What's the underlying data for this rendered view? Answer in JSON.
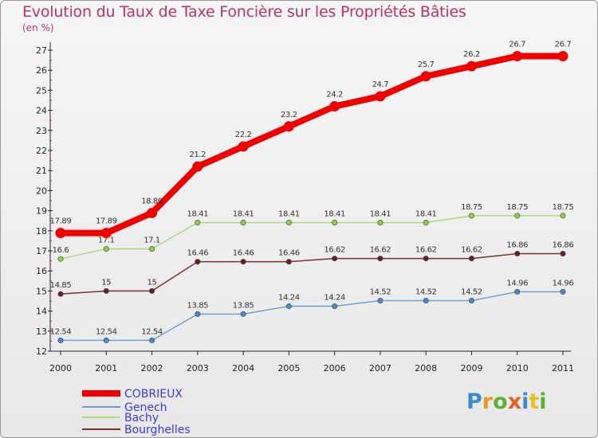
{
  "title": "Evolution du Taux de Taxe Foncière sur les Propriétés Bâties",
  "unit_label": "(en %)",
  "logo_text": "Proxiti",
  "chart_data": {
    "type": "line",
    "title": "Evolution du Taux de Taxe Foncière sur les Propriétés Bâties",
    "ylabel": "(en %)",
    "xlabel": "",
    "ylim": [
      12,
      27
    ],
    "yticks": [
      12,
      13,
      14,
      15,
      16,
      17,
      18,
      19,
      20,
      21,
      22,
      23,
      24,
      25,
      26,
      27
    ],
    "categories": [
      "2000",
      "2001",
      "2002",
      "2003",
      "2004",
      "2005",
      "2006",
      "2007",
      "2008",
      "2009",
      "2010",
      "2011"
    ],
    "series": [
      {
        "name": "COBRIEUX",
        "color": "#ee0000",
        "marker": "#ee0000",
        "values": [
          17.89,
          17.89,
          18.89,
          21.2,
          22.2,
          23.2,
          24.2,
          24.7,
          25.7,
          26.2,
          26.7,
          26.7
        ],
        "labels": [
          "17.89",
          "17.89",
          "18.89",
          "21.2",
          "22.2",
          "23.2",
          "24.2",
          "24.7",
          "25.7",
          "26.2",
          "26.7",
          "26.7"
        ]
      },
      {
        "name": "Genech",
        "color": "#6fa0c8",
        "marker": "#4a8ac8",
        "values": [
          12.54,
          12.54,
          12.54,
          13.85,
          13.85,
          14.24,
          14.24,
          14.52,
          14.52,
          14.52,
          14.96,
          14.96
        ],
        "labels": [
          "12.54",
          "12.54",
          "12.54",
          "13.85",
          "13.85",
          "14.24",
          "14.24",
          "14.52",
          "14.52",
          "14.52",
          "14.96",
          "14.96"
        ]
      },
      {
        "name": "Bachy",
        "color": "#a8dc78",
        "marker": "#8cd048",
        "values": [
          16.6,
          17.1,
          17.1,
          18.41,
          18.41,
          18.41,
          18.41,
          18.41,
          18.41,
          18.75,
          18.75,
          18.75
        ],
        "labels": [
          "16.6",
          "17.1",
          "17.1",
          "18.41",
          "18.41",
          "18.41",
          "18.41",
          "18.41",
          "18.41",
          "18.75",
          "18.75",
          "18.75"
        ]
      },
      {
        "name": "Bourghelles",
        "color": "#7a3030",
        "marker": "#6a2020",
        "values": [
          14.85,
          15,
          15,
          16.46,
          16.46,
          16.46,
          16.62,
          16.62,
          16.62,
          16.62,
          16.86,
          16.86
        ],
        "labels": [
          "14.85",
          "15",
          "15",
          "16.46",
          "16.46",
          "16.46",
          "16.62",
          "16.62",
          "16.62",
          "16.62",
          "16.86",
          "16.86"
        ]
      }
    ],
    "legend_position": "bottom-left"
  }
}
